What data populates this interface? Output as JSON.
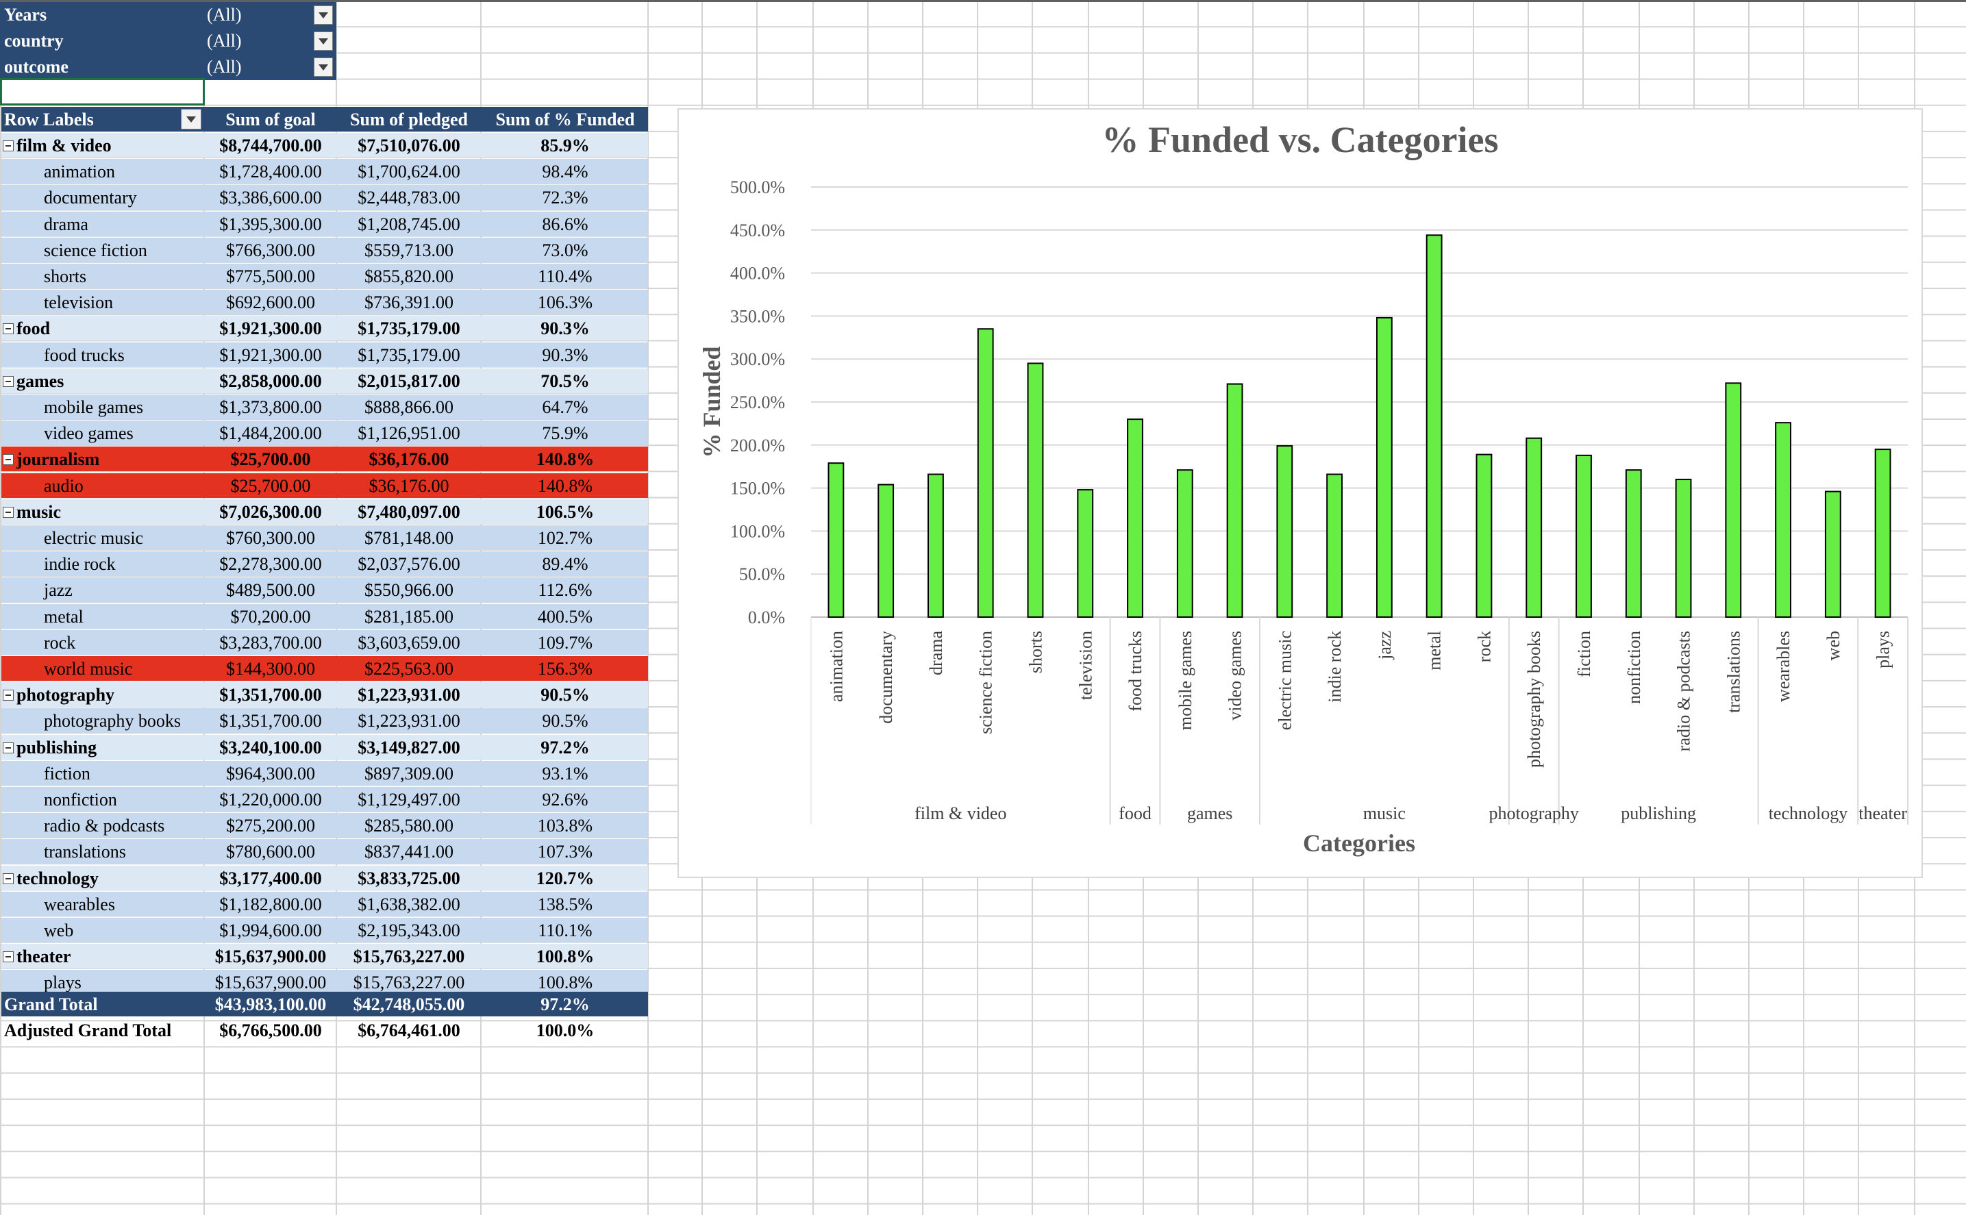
{
  "filters": [
    {
      "label": "Years",
      "value": "(All)"
    },
    {
      "label": "country",
      "value": "(All)"
    },
    {
      "label": "outcome",
      "value": "(All)"
    }
  ],
  "pivot": {
    "headers": [
      "Row Labels",
      "Sum of goal",
      "Sum of pledged",
      "Sum of % Funded"
    ],
    "rows": [
      {
        "kind": "cat",
        "label": "film & video",
        "goal": "$8,744,700.00",
        "pledged": "$7,510,076.00",
        "funded": "85.9%"
      },
      {
        "kind": "sub",
        "label": "animation",
        "goal": "$1,728,400.00",
        "pledged": "$1,700,624.00",
        "funded": "98.4%"
      },
      {
        "kind": "sub",
        "label": "documentary",
        "goal": "$3,386,600.00",
        "pledged": "$2,448,783.00",
        "funded": "72.3%"
      },
      {
        "kind": "sub",
        "label": "drama",
        "goal": "$1,395,300.00",
        "pledged": "$1,208,745.00",
        "funded": "86.6%"
      },
      {
        "kind": "sub",
        "label": "science fiction",
        "goal": "$766,300.00",
        "pledged": "$559,713.00",
        "funded": "73.0%"
      },
      {
        "kind": "sub",
        "label": "shorts",
        "goal": "$775,500.00",
        "pledged": "$855,820.00",
        "funded": "110.4%"
      },
      {
        "kind": "sub",
        "label": "television",
        "goal": "$692,600.00",
        "pledged": "$736,391.00",
        "funded": "106.3%"
      },
      {
        "kind": "cat",
        "label": "food",
        "goal": "$1,921,300.00",
        "pledged": "$1,735,179.00",
        "funded": "90.3%"
      },
      {
        "kind": "sub",
        "label": "food trucks",
        "goal": "$1,921,300.00",
        "pledged": "$1,735,179.00",
        "funded": "90.3%"
      },
      {
        "kind": "cat",
        "label": "games",
        "goal": "$2,858,000.00",
        "pledged": "$2,015,817.00",
        "funded": "70.5%"
      },
      {
        "kind": "sub",
        "label": "mobile games",
        "goal": "$1,373,800.00",
        "pledged": "$888,866.00",
        "funded": "64.7%"
      },
      {
        "kind": "sub",
        "label": "video games",
        "goal": "$1,484,200.00",
        "pledged": "$1,126,951.00",
        "funded": "75.9%"
      },
      {
        "kind": "cat-red",
        "label": "journalism",
        "goal": "$25,700.00",
        "pledged": "$36,176.00",
        "funded": "140.8%"
      },
      {
        "kind": "sub-red",
        "label": "audio",
        "goal": "$25,700.00",
        "pledged": "$36,176.00",
        "funded": "140.8%"
      },
      {
        "kind": "cat",
        "label": "music",
        "goal": "$7,026,300.00",
        "pledged": "$7,480,097.00",
        "funded": "106.5%"
      },
      {
        "kind": "sub",
        "label": "electric music",
        "goal": "$760,300.00",
        "pledged": "$781,148.00",
        "funded": "102.7%"
      },
      {
        "kind": "sub",
        "label": "indie rock",
        "goal": "$2,278,300.00",
        "pledged": "$2,037,576.00",
        "funded": "89.4%"
      },
      {
        "kind": "sub",
        "label": "jazz",
        "goal": "$489,500.00",
        "pledged": "$550,966.00",
        "funded": "112.6%"
      },
      {
        "kind": "sub",
        "label": "metal",
        "goal": "$70,200.00",
        "pledged": "$281,185.00",
        "funded": "400.5%"
      },
      {
        "kind": "sub",
        "label": "rock",
        "goal": "$3,283,700.00",
        "pledged": "$3,603,659.00",
        "funded": "109.7%"
      },
      {
        "kind": "sub-red",
        "label": "world music",
        "goal": "$144,300.00",
        "pledged": "$225,563.00",
        "funded": "156.3%"
      },
      {
        "kind": "cat",
        "label": "photography",
        "goal": "$1,351,700.00",
        "pledged": "$1,223,931.00",
        "funded": "90.5%"
      },
      {
        "kind": "sub",
        "label": "photography books",
        "goal": "$1,351,700.00",
        "pledged": "$1,223,931.00",
        "funded": "90.5%"
      },
      {
        "kind": "cat",
        "label": "publishing",
        "goal": "$3,240,100.00",
        "pledged": "$3,149,827.00",
        "funded": "97.2%"
      },
      {
        "kind": "sub",
        "label": "fiction",
        "goal": "$964,300.00",
        "pledged": "$897,309.00",
        "funded": "93.1%"
      },
      {
        "kind": "sub",
        "label": "nonfiction",
        "goal": "$1,220,000.00",
        "pledged": "$1,129,497.00",
        "funded": "92.6%"
      },
      {
        "kind": "sub",
        "label": "radio & podcasts",
        "goal": "$275,200.00",
        "pledged": "$285,580.00",
        "funded": "103.8%"
      },
      {
        "kind": "sub",
        "label": "translations",
        "goal": "$780,600.00",
        "pledged": "$837,441.00",
        "funded": "107.3%"
      },
      {
        "kind": "cat",
        "label": "technology",
        "goal": "$3,177,400.00",
        "pledged": "$3,833,725.00",
        "funded": "120.7%"
      },
      {
        "kind": "sub",
        "label": "wearables",
        "goal": "$1,182,800.00",
        "pledged": "$1,638,382.00",
        "funded": "138.5%"
      },
      {
        "kind": "sub",
        "label": "web",
        "goal": "$1,994,600.00",
        "pledged": "$2,195,343.00",
        "funded": "110.1%"
      },
      {
        "kind": "cat",
        "label": "theater",
        "goal": "$15,637,900.00",
        "pledged": "$15,763,227.00",
        "funded": "100.8%"
      },
      {
        "kind": "sub",
        "label": "plays",
        "goal": "$15,637,900.00",
        "pledged": "$15,763,227.00",
        "funded": "100.8%"
      }
    ],
    "grand_total": {
      "label": "Grand Total",
      "goal": "$43,983,100.00",
      "pledged": "$42,748,055.00",
      "funded": "97.2%"
    },
    "adjusted_total": {
      "label": "Adjusted Grand Total",
      "goal": "$6,766,500.00",
      "pledged": "$6,764,461.00",
      "funded": "100.0%"
    }
  },
  "colors": {
    "header_bg": "#2b4a73",
    "category_bg": "#dde8f5",
    "subcategory_bg": "#c7d9ee",
    "highlight_red": "#e3321f",
    "bar_fill": "#66ee44"
  },
  "chart_data": {
    "type": "bar",
    "title": "% Funded vs. Categories",
    "xlabel": "Categories",
    "ylabel": "% Funded",
    "ylim": [
      0,
      500
    ],
    "yticks": [
      "0.0%",
      "50.0%",
      "100.0%",
      "150.0%",
      "200.0%",
      "250.0%",
      "300.0%",
      "350.0%",
      "400.0%",
      "450.0%",
      "500.0%"
    ],
    "grid": true,
    "legend": false,
    "groups": [
      {
        "name": "film & video",
        "categories": [
          "animation",
          "documentary",
          "drama",
          "science fiction",
          "shorts",
          "television"
        ],
        "values": [
          179,
          154,
          166,
          335,
          295,
          148
        ]
      },
      {
        "name": "food",
        "categories": [
          "food trucks"
        ],
        "values": [
          230
        ]
      },
      {
        "name": "games",
        "categories": [
          "mobile games",
          "video games"
        ],
        "values": [
          171,
          271
        ]
      },
      {
        "name": "music",
        "categories": [
          "electric music",
          "indie rock",
          "jazz",
          "metal",
          "rock"
        ],
        "values": [
          199,
          166,
          348,
          444,
          189
        ]
      },
      {
        "name": "photography",
        "categories": [
          "photography books"
        ],
        "values": [
          208
        ]
      },
      {
        "name": "publishing",
        "categories": [
          "fiction",
          "nonfiction",
          "radio & podcasts",
          "translations"
        ],
        "values": [
          188,
          171,
          160,
          272
        ]
      },
      {
        "name": "technology",
        "categories": [
          "wearables",
          "web"
        ],
        "values": [
          226,
          146
        ]
      },
      {
        "name": "theater",
        "categories": [
          "plays"
        ],
        "values": [
          195
        ]
      }
    ]
  }
}
